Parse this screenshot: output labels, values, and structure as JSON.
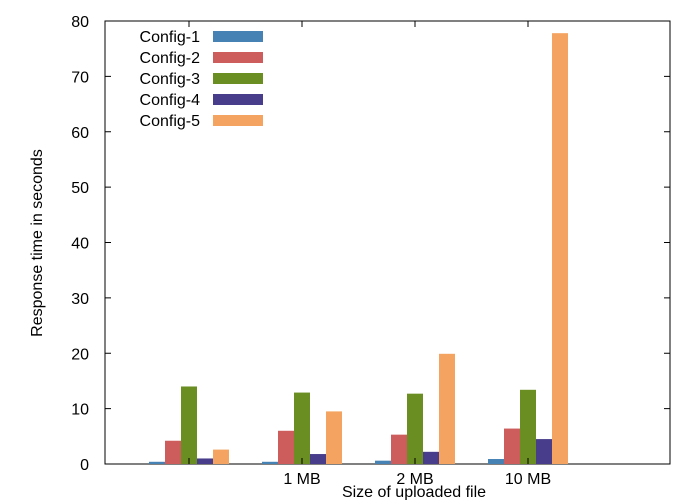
{
  "chart_data": {
    "type": "bar",
    "xlabel": "Size of uploaded file",
    "ylabel": "Response time in seconds",
    "ylim": [
      0,
      80
    ],
    "yticks": [
      0,
      10,
      20,
      30,
      40,
      50,
      60,
      70,
      80
    ],
    "categories": [
      "",
      "1 MB",
      "2 MB",
      "10 MB"
    ],
    "legend_position": "top-left",
    "grid": false,
    "series": [
      {
        "name": "Config-1",
        "color": "#4682b4",
        "values": [
          0.4,
          0.4,
          0.6,
          0.9
        ]
      },
      {
        "name": "Config-2",
        "color": "#cd5c5c",
        "values": [
          4.2,
          6.0,
          5.3,
          6.4
        ]
      },
      {
        "name": "Config-3",
        "color": "#6b8e23",
        "values": [
          14.0,
          12.9,
          12.7,
          13.4
        ]
      },
      {
        "name": "Config-4",
        "color": "#483d8b",
        "values": [
          1.0,
          1.8,
          2.2,
          4.5
        ]
      },
      {
        "name": "Config-5",
        "color": "#f4a460",
        "values": [
          2.6,
          9.5,
          19.9,
          77.8
        ]
      }
    ]
  }
}
